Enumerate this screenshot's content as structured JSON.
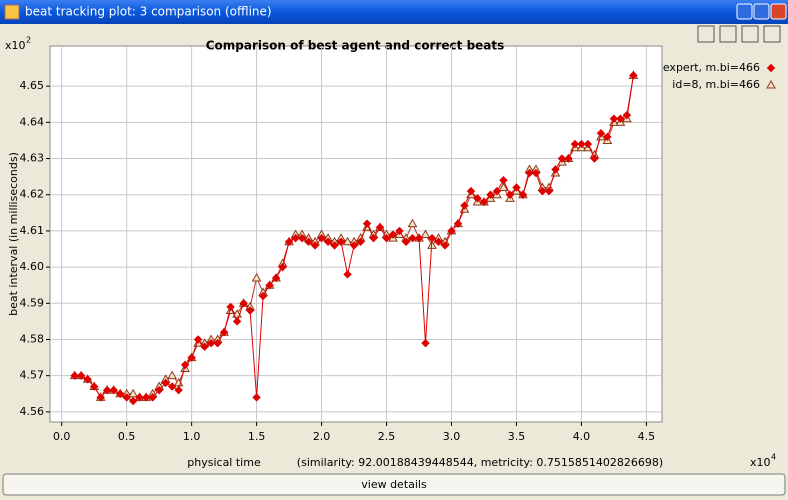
{
  "window": {
    "title": "beat tracking plot: 3 comparison (offline)",
    "button": "view details"
  },
  "chart_data": {
    "type": "line",
    "title": "Comparison of best agent and correct beats",
    "x_label": "physical time",
    "y_label": "beat interval (in milliseconds)",
    "note": "(similarity: 92.00188439448544, metricity: 0.7515851402826698)",
    "x_multiplier": "x10",
    "x_exponent": "4",
    "y_multiplier": "x10",
    "y_exponent": "2",
    "x": [
      0.1,
      0.15,
      0.2,
      0.25,
      0.3,
      0.35,
      0.4,
      0.45,
      0.5,
      0.55,
      0.6,
      0.65,
      0.7,
      0.75,
      0.8,
      0.85,
      0.9,
      0.95,
      1.0,
      1.05,
      1.1,
      1.15,
      1.2,
      1.25,
      1.3,
      1.35,
      1.4,
      1.45,
      1.5,
      1.55,
      1.6,
      1.65,
      1.7,
      1.75,
      1.8,
      1.85,
      1.9,
      1.95,
      2.0,
      2.05,
      2.1,
      2.15,
      2.2,
      2.25,
      2.3,
      2.35,
      2.4,
      2.45,
      2.5,
      2.55,
      2.6,
      2.65,
      2.7,
      2.75,
      2.8,
      2.85,
      2.9,
      2.95,
      3.0,
      3.05,
      3.1,
      3.15,
      3.2,
      3.25,
      3.3,
      3.35,
      3.4,
      3.45,
      3.5,
      3.55,
      3.6,
      3.65,
      3.7,
      3.75,
      3.8,
      3.85,
      3.9,
      3.95,
      4.0,
      4.05,
      4.1,
      4.15,
      4.2,
      4.25,
      4.3,
      4.35,
      4.4
    ],
    "series": [
      {
        "name": "expert, m.bi=466",
        "color": "#e00000",
        "marker": "diamond",
        "values": [
          4.57,
          4.57,
          4.569,
          4.567,
          4.564,
          4.566,
          4.566,
          4.565,
          4.564,
          4.563,
          4.564,
          4.564,
          4.564,
          4.566,
          4.568,
          4.567,
          4.566,
          4.573,
          4.575,
          4.58,
          4.578,
          4.579,
          4.579,
          4.582,
          4.589,
          4.585,
          4.59,
          4.588,
          4.564,
          4.592,
          4.595,
          4.597,
          4.6,
          4.607,
          4.608,
          4.608,
          4.607,
          4.606,
          4.608,
          4.607,
          4.606,
          4.607,
          4.598,
          4.606,
          4.607,
          4.612,
          4.608,
          4.611,
          4.608,
          4.609,
          4.61,
          4.607,
          4.608,
          4.608,
          4.579,
          4.608,
          4.607,
          4.606,
          4.61,
          4.612,
          4.617,
          4.621,
          4.619,
          4.618,
          4.62,
          4.621,
          4.624,
          4.62,
          4.622,
          4.62,
          4.626,
          4.626,
          4.621,
          4.621,
          4.627,
          4.63,
          4.63,
          4.634,
          4.634,
          4.634,
          4.63,
          4.637,
          4.636,
          4.641,
          4.641,
          4.642,
          4.653
        ]
      },
      {
        "name": "id=8, m.bi=466",
        "color": "#8b3a1a",
        "marker": "triangle",
        "values": [
          4.57,
          4.57,
          4.569,
          4.567,
          4.564,
          4.566,
          4.566,
          4.565,
          4.565,
          4.565,
          4.564,
          4.564,
          4.565,
          4.567,
          4.569,
          4.57,
          4.568,
          4.572,
          4.575,
          4.579,
          4.579,
          4.58,
          4.58,
          4.582,
          4.588,
          4.587,
          4.59,
          4.589,
          4.597,
          4.593,
          4.595,
          4.597,
          4.601,
          4.607,
          4.609,
          4.609,
          4.608,
          4.607,
          4.609,
          4.608,
          4.607,
          4.608,
          4.607,
          4.607,
          4.608,
          4.611,
          4.609,
          4.611,
          4.609,
          4.608,
          4.609,
          4.608,
          4.612,
          4.608,
          4.609,
          4.606,
          4.608,
          4.607,
          4.61,
          4.612,
          4.616,
          4.62,
          4.618,
          4.618,
          4.619,
          4.62,
          4.622,
          4.619,
          4.621,
          4.62,
          4.627,
          4.627,
          4.622,
          4.622,
          4.626,
          4.629,
          4.63,
          4.633,
          4.633,
          4.633,
          4.631,
          4.636,
          4.635,
          4.64,
          4.64,
          4.641,
          4.653
        ]
      }
    ],
    "xlim": [
      -0.09,
      4.62
    ],
    "ylim": [
      4.5572,
      4.6611
    ],
    "xticks": [
      {
        "value": 0.0,
        "label": "0.0"
      },
      0.5,
      {
        "value": 1.0,
        "label": "1.0"
      },
      1.5,
      {
        "value": 2.0,
        "label": "2.0"
      },
      2.5,
      {
        "value": 3.0,
        "label": "3.0"
      },
      3.5,
      {
        "value": 4.0,
        "label": "4.0"
      },
      4.5
    ],
    "yticks": [
      4.56,
      4.57,
      4.58,
      4.59,
      {
        "value": 4.6,
        "label": "4.60"
      },
      4.61,
      4.62,
      4.63,
      4.64,
      4.65
    ],
    "grid": true,
    "legend": "right"
  }
}
